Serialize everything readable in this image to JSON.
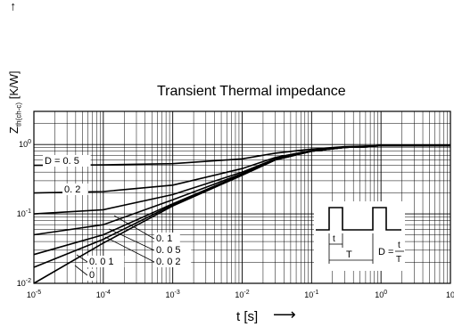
{
  "chart_data": {
    "type": "line",
    "title": "Transient Thermal impedance",
    "xlabel": "t [s]",
    "ylabel": "Zth(ch-c) [K/W]",
    "ylabel_main": "Z",
    "ylabel_sub": "th(ch-c)",
    "ylabel_unit": "[K/W]",
    "xscale": "log",
    "yscale": "log",
    "xlim": [
      1e-05,
      10
    ],
    "ylim": [
      0.01,
      3
    ],
    "grid": true,
    "x_ticks": [
      {
        "value": 1e-05,
        "label": "10",
        "exp": "-5"
      },
      {
        "value": 0.0001,
        "label": "10",
        "exp": "-4"
      },
      {
        "value": 0.001,
        "label": "10",
        "exp": "-3"
      },
      {
        "value": 0.01,
        "label": "10",
        "exp": "-2"
      },
      {
        "value": 0.1,
        "label": "10",
        "exp": "-1"
      },
      {
        "value": 1,
        "label": "10",
        "exp": "0"
      },
      {
        "value": 10,
        "label": "10",
        "exp": ""
      }
    ],
    "y_ticks": [
      {
        "value": 0.01,
        "label": "10",
        "exp": "-2"
      },
      {
        "value": 0.1,
        "label": "10",
        "exp": "-1"
      },
      {
        "value": 1,
        "label": "10",
        "exp": "0"
      }
    ],
    "series": [
      {
        "name": "D = 0. 5",
        "x": [
          1e-05,
          0.0001,
          0.001,
          0.01,
          0.03,
          0.1,
          0.3,
          1,
          3,
          10
        ],
        "y": [
          0.5,
          0.51,
          0.53,
          0.62,
          0.75,
          0.86,
          0.93,
          0.96,
          0.96,
          0.96
        ]
      },
      {
        "name": "0. 2",
        "x": [
          1e-05,
          0.0001,
          0.001,
          0.01,
          0.03,
          0.1,
          0.3,
          1,
          3,
          10
        ],
        "y": [
          0.2,
          0.21,
          0.26,
          0.45,
          0.65,
          0.82,
          0.92,
          0.96,
          0.96,
          0.96
        ]
      },
      {
        "name": "0. 1",
        "x": [
          1e-05,
          0.0001,
          0.001,
          0.01,
          0.03,
          0.1,
          0.3,
          1,
          3,
          10
        ],
        "y": [
          0.1,
          0.115,
          0.19,
          0.4,
          0.62,
          0.81,
          0.92,
          0.96,
          0.96,
          0.96
        ]
      },
      {
        "name": "0. 0 5",
        "x": [
          1e-05,
          0.0001,
          0.001,
          0.01,
          0.03,
          0.1,
          0.3,
          1,
          3,
          10
        ],
        "y": [
          0.05,
          0.07,
          0.16,
          0.38,
          0.61,
          0.8,
          0.91,
          0.96,
          0.96,
          0.96
        ]
      },
      {
        "name": "0. 0 2",
        "x": [
          1e-05,
          0.0001,
          0.001,
          0.01,
          0.03,
          0.1,
          0.3,
          1,
          3,
          10
        ],
        "y": [
          0.026,
          0.05,
          0.14,
          0.37,
          0.6,
          0.8,
          0.91,
          0.96,
          0.96,
          0.96
        ]
      },
      {
        "name": "0. 0 1",
        "x": [
          1e-05,
          0.0001,
          0.001,
          0.01,
          0.03,
          0.1,
          0.3,
          1,
          3,
          10
        ],
        "y": [
          0.017,
          0.043,
          0.135,
          0.36,
          0.6,
          0.8,
          0.91,
          0.96,
          0.96,
          0.96
        ]
      },
      {
        "name": "0",
        "x": [
          1e-05,
          0.0001,
          0.001,
          0.01,
          0.03,
          0.1,
          0.3,
          1,
          3,
          10
        ],
        "y": [
          0.01,
          0.038,
          0.13,
          0.36,
          0.6,
          0.8,
          0.91,
          0.96,
          0.96,
          0.96
        ]
      }
    ],
    "inset": {
      "t_label": "t",
      "T_label": "T",
      "formula_lhs": "D =",
      "formula_num": "t",
      "formula_den": "T"
    }
  }
}
